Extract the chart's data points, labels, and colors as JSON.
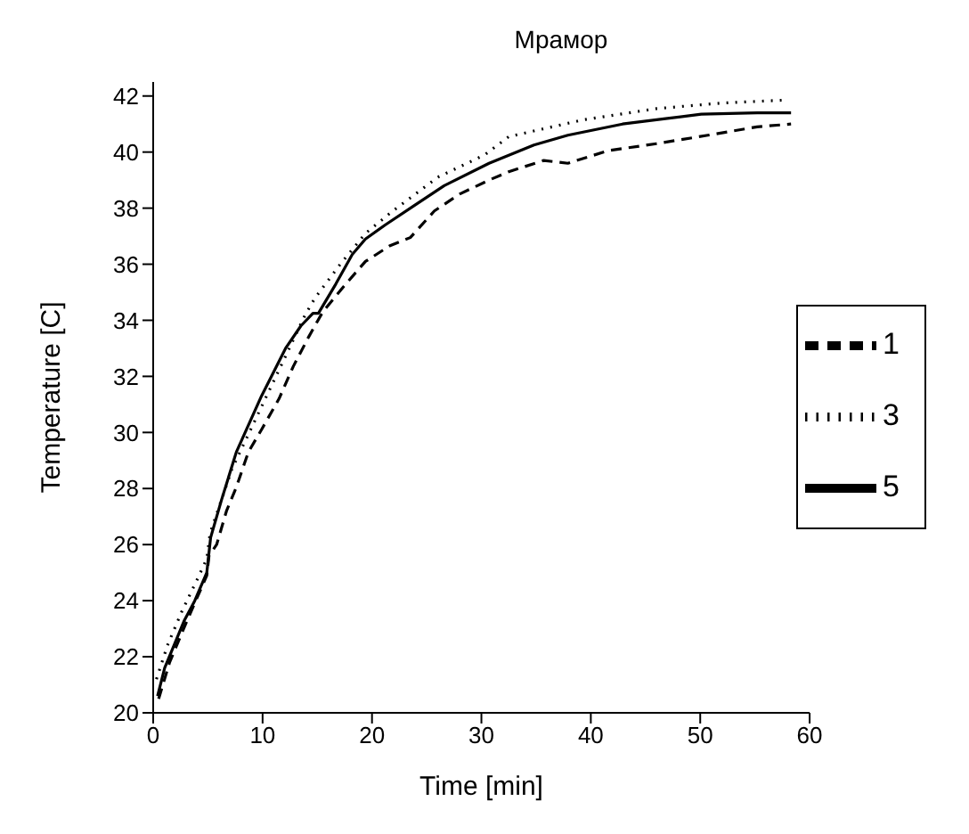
{
  "chart_data": {
    "type": "line",
    "title": "Мрамор",
    "xlabel": "Time [min]",
    "ylabel": "Temperature [C]",
    "xlim": [
      0,
      60
    ],
    "xticks": [
      0,
      10,
      20,
      30,
      40,
      50,
      60
    ],
    "ylim": [
      20,
      42.5
    ],
    "yticks": [
      20,
      22,
      24,
      26,
      28,
      30,
      32,
      34,
      36,
      38,
      40,
      42
    ],
    "grid": false,
    "legend": "right",
    "marker": "none",
    "series": [
      {
        "name": "1",
        "color": "#000000",
        "line_style": "dashed",
        "x": [
          0.5,
          1.5,
          3,
          4.9,
          5.1,
          5.8,
          6.7,
          7.6,
          8.7,
          9.9,
          11.5,
          12.8,
          14.2,
          15.5,
          17.4,
          19.4,
          21.6,
          23.5,
          25.7,
          28,
          30.7,
          32.5,
          35.7,
          37.9,
          41.6,
          46,
          50.7,
          55.2,
          58.3
        ],
        "values": [
          20.5,
          21.8,
          23.2,
          24.9,
          25.6,
          26.0,
          27.2,
          28.05,
          29.3,
          30.1,
          31.2,
          32.35,
          33.4,
          34.3,
          35.2,
          36.1,
          36.65,
          36.95,
          37.9,
          38.5,
          39.0,
          39.3,
          39.7,
          39.6,
          40.05,
          40.3,
          40.6,
          40.9,
          41.0
        ]
      },
      {
        "name": "3",
        "color": "#000000",
        "line_style": "dotted",
        "x": [
          0.3,
          1.3,
          2.6,
          4.2,
          4.9,
          5.2,
          7.2,
          13.9,
          14.8,
          17.1,
          19.4,
          21.9,
          26,
          30.3,
          32.5,
          39.3,
          46,
          52,
          57.5
        ],
        "values": [
          21.2,
          22.4,
          23.6,
          24.9,
          25.5,
          26.4,
          28.7,
          34.2,
          34.8,
          36.0,
          37.1,
          37.9,
          39.1,
          39.9,
          40.55,
          41.15,
          41.55,
          41.75,
          41.85
        ]
      },
      {
        "name": "5",
        "color": "#000000",
        "line_style": "solid",
        "x": [
          0.4,
          1.05,
          2.85,
          3.8,
          4.9,
          5.25,
          6.25,
          7.6,
          9.9,
          12.1,
          13.5,
          14.6,
          15.1,
          16.7,
          18.2,
          19.4,
          21.2,
          23.9,
          26.6,
          30.7,
          34.8,
          37.9,
          42.9,
          47,
          50.1,
          55.2,
          58.3
        ],
        "values": [
          20.6,
          21.6,
          23.3,
          24.0,
          25.0,
          26.25,
          27.6,
          29.3,
          31.3,
          33.0,
          33.8,
          34.25,
          34.25,
          35.3,
          36.35,
          36.9,
          37.4,
          38.1,
          38.8,
          39.6,
          40.25,
          40.6,
          41.0,
          41.2,
          41.35,
          41.4,
          41.4
        ]
      }
    ]
  }
}
